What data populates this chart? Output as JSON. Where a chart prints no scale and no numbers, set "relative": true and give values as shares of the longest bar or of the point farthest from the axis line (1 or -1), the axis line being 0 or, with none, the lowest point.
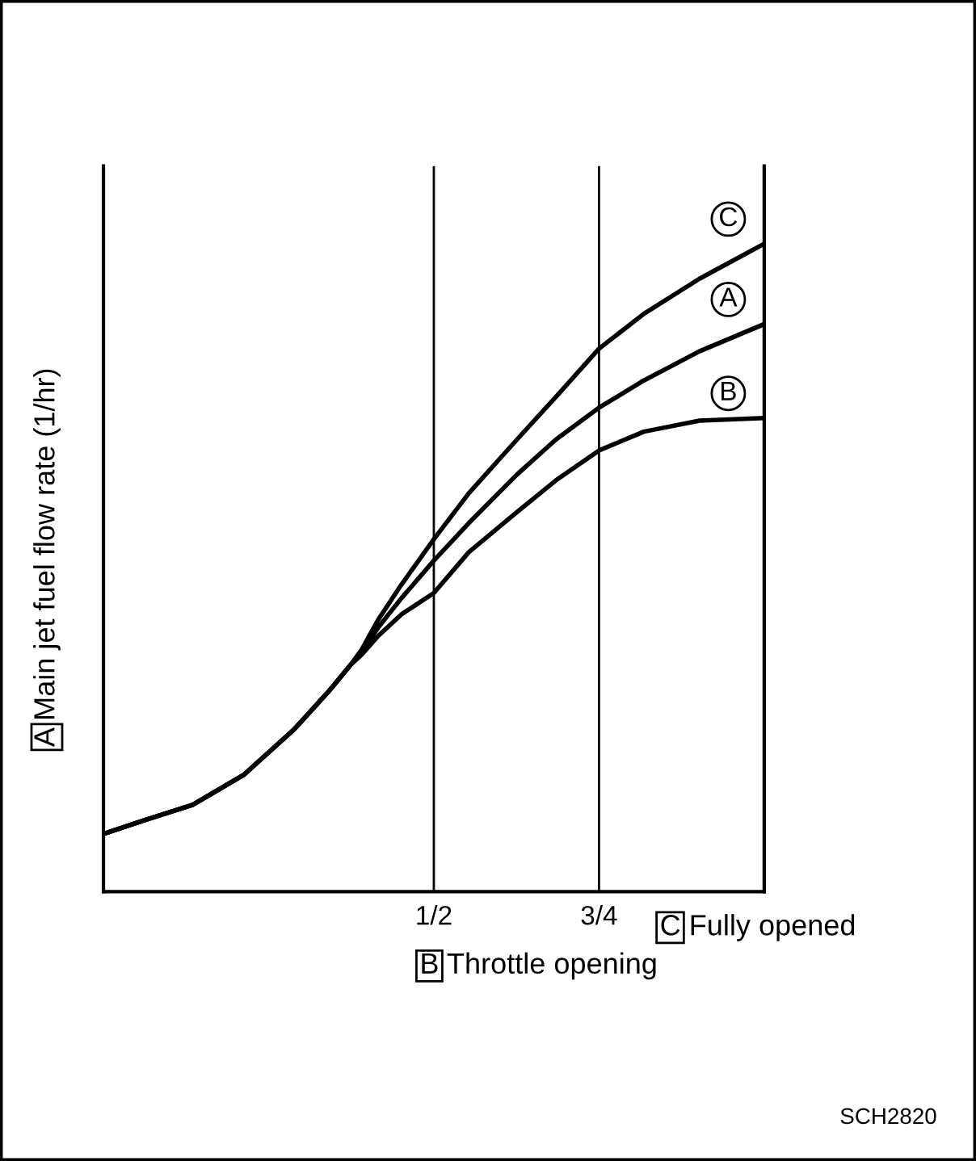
{
  "chart_data": {
    "type": "line",
    "relative": true,
    "xlabel": "B Throttle opening",
    "ylabel": "A Main jet fuel flow rate (1/hr)",
    "xlim": [
      0,
      1
    ],
    "xticks": [
      {
        "value": 0.5,
        "label": "1/2"
      },
      {
        "value": 0.75,
        "label": "3/4"
      }
    ],
    "grid": "x",
    "legend": false,
    "marker": "none",
    "line_style": "solid",
    "series": [
      {
        "name": "C",
        "color": "#000000",
        "x": [
          0,
          0.067,
          0.135,
          0.212,
          0.288,
          0.34,
          0.374,
          0.391,
          0.416,
          0.451,
          0.5,
          0.553,
          0.626,
          0.685,
          0.75,
          0.818,
          0.902,
          1
        ],
        "values": [
          0.089,
          0.112,
          0.134,
          0.18,
          0.25,
          0.308,
          0.35,
          0.374,
          0.42,
          0.474,
          0.544,
          0.615,
          0.698,
          0.764,
          0.838,
          0.892,
          0.946,
          1
        ]
      },
      {
        "name": "A",
        "color": "#000000",
        "x": [
          0,
          0.067,
          0.135,
          0.212,
          0.288,
          0.34,
          0.374,
          0.391,
          0.416,
          0.451,
          0.5,
          0.553,
          0.626,
          0.685,
          0.75,
          0.818,
          0.902,
          1
        ],
        "values": [
          0.089,
          0.112,
          0.134,
          0.18,
          0.25,
          0.308,
          0.35,
          0.37,
          0.408,
          0.453,
          0.511,
          0.569,
          0.644,
          0.698,
          0.747,
          0.789,
          0.834,
          0.876
        ]
      },
      {
        "name": "B",
        "color": "#000000",
        "x": [
          0,
          0.067,
          0.135,
          0.212,
          0.288,
          0.34,
          0.374,
          0.391,
          0.416,
          0.451,
          0.5,
          0.553,
          0.626,
          0.685,
          0.75,
          0.818,
          0.902,
          1
        ],
        "values": [
          0.089,
          0.112,
          0.134,
          0.18,
          0.25,
          0.308,
          0.35,
          0.366,
          0.395,
          0.428,
          0.461,
          0.524,
          0.586,
          0.635,
          0.681,
          0.71,
          0.727,
          0.731
        ]
      }
    ],
    "annotations": [
      "C Fully opened",
      "SCH2820"
    ]
  }
}
